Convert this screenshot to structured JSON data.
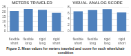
{
  "chart_data": [
    {
      "type": "bar",
      "title": "METERS TRAVELED",
      "categories": [
        "flexible short",
        "flexible long",
        "rigid long",
        "rigid short"
      ],
      "values": [
        21,
        23,
        22,
        19
      ],
      "color": "#4f81bd",
      "ylim": [
        0,
        25
      ],
      "yticks": [
        0,
        5,
        10,
        15,
        20,
        25
      ],
      "grid": true
    },
    {
      "type": "bar",
      "title": "VISUAL ANALOG SCORE",
      "categories": [
        "flexible short",
        "flexible long",
        "rigid long",
        "rigid short"
      ],
      "values": [
        6.6,
        7.0,
        7.3,
        6.2
      ],
      "color": "#4f81bd",
      "ylim": [
        0,
        8
      ],
      "yticks": [
        0,
        2,
        4,
        6,
        8
      ],
      "grid": true
    }
  ],
  "caption": "Figure 2. Mean values for meters traveled and score for each wheelchair condition"
}
